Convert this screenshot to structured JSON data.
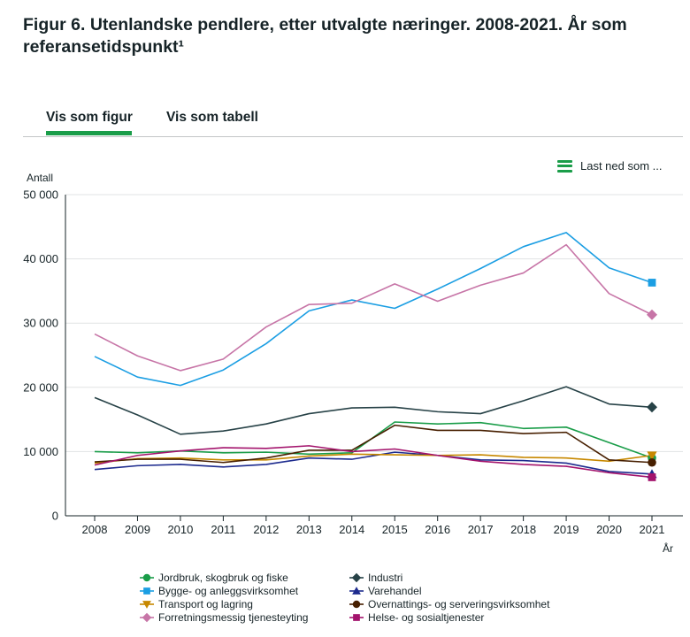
{
  "page": {
    "title": "Figur 6. Utenlandske pendlere, etter utvalgte næringer. 2008-2021. År som referansetidspunkt¹",
    "tabs": [
      {
        "label": "Vis som figur",
        "active": true
      },
      {
        "label": "Vis som tabell",
        "active": false
      }
    ],
    "download_label": "Last ned som ...",
    "accent_color": "#1a9d49"
  },
  "chart_data": {
    "type": "line",
    "title": "Utenlandske pendlere, etter utvalgte næringer. 2008-2021",
    "ylabel": "Antall",
    "xlabel": "År",
    "ylim": [
      0,
      50000
    ],
    "yticks": [
      {
        "value": 0,
        "label": "0"
      },
      {
        "value": 10000,
        "label": "10 000"
      },
      {
        "value": 20000,
        "label": "20 000"
      },
      {
        "value": 30000,
        "label": "30 000"
      },
      {
        "value": 40000,
        "label": "40 000"
      },
      {
        "value": 50000,
        "label": "50 000"
      }
    ],
    "categories": [
      "2008",
      "2009",
      "2010",
      "2011",
      "2012",
      "2013",
      "2014",
      "2015",
      "2016",
      "2017",
      "2018",
      "2019",
      "2020",
      "2021"
    ],
    "grid": true,
    "legend_position": "bottom",
    "series": [
      {
        "name": "Jordbruk, skogbruk og fiske",
        "color": "#1a9d49",
        "marker": "circle",
        "values": [
          10000,
          9800,
          10100,
          9800,
          9900,
          9600,
          9800,
          14600,
          14300,
          14500,
          13600,
          13800,
          11400,
          9000
        ]
      },
      {
        "name": "Industri",
        "color": "#274247",
        "marker": "diamond",
        "values": [
          18400,
          15700,
          12700,
          13200,
          14300,
          15900,
          16800,
          16900,
          16200,
          15900,
          17900,
          20100,
          17400,
          16900
        ]
      },
      {
        "name": "Bygge- og anleggsvirksomhet",
        "color": "#1b9ee3",
        "marker": "square",
        "values": [
          24800,
          21600,
          20300,
          22700,
          26800,
          31900,
          33600,
          32300,
          35300,
          38500,
          41900,
          44100,
          38600,
          36300
        ]
      },
      {
        "name": "Varehandel",
        "color": "#1d2b8e",
        "marker": "triangle",
        "values": [
          7200,
          7800,
          8000,
          7600,
          8000,
          9000,
          8800,
          9900,
          9400,
          8700,
          8600,
          8200,
          6900,
          6500
        ]
      },
      {
        "name": "Transport og lagring",
        "color": "#c78800",
        "marker": "triangle-down",
        "values": [
          8200,
          8900,
          9000,
          8700,
          8700,
          9300,
          9600,
          9500,
          9400,
          9500,
          9100,
          9000,
          8500,
          9400
        ]
      },
      {
        "name": "Overnattings- og serveringsvirksomhet",
        "color": "#471f00",
        "marker": "circle",
        "values": [
          8400,
          8800,
          8800,
          8300,
          9000,
          10200,
          10200,
          14100,
          13300,
          13300,
          12800,
          13000,
          8700,
          8300
        ]
      },
      {
        "name": "Forretningsmessig tjenesteyting",
        "color": "#c775a7",
        "marker": "diamond",
        "values": [
          28300,
          24900,
          22600,
          24400,
          29400,
          32900,
          33100,
          36100,
          33400,
          35900,
          37800,
          42200,
          34600,
          31300
        ]
      },
      {
        "name": "Helse- og sosialtjenester",
        "color": "#a3136c",
        "marker": "square",
        "values": [
          7900,
          9400,
          10100,
          10600,
          10500,
          10900,
          10000,
          10400,
          9400,
          8500,
          8000,
          7700,
          6700,
          6000
        ]
      }
    ]
  }
}
